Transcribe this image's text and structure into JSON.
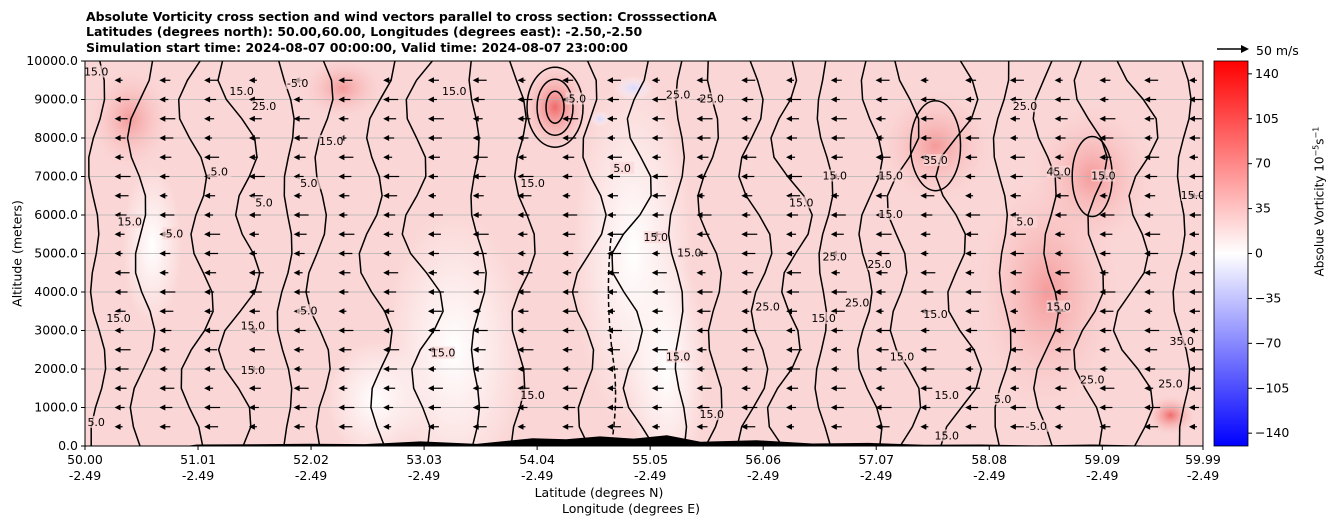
{
  "titles": {
    "line1": "Absolute Vorticity cross section and wind vectors parallel to cross section: CrosssectionA",
    "line2": "Latitudes (degrees north): 50.00,60.00, Longitudes (degrees east): -2.50,-2.50",
    "line3": "Simulation start time: 2024-08-07 00:00:00, Valid time: 2024-08-07 23:00:00"
  },
  "axes": {
    "ylabel": "Altitude (meters)",
    "xlabel_1": "Latitude (degrees N)",
    "xlabel_2": "Longitude (degrees E)"
  },
  "quiver_key": {
    "label": "50 m/s"
  },
  "colorbar": {
    "label": "Absolue Vorticity 10",
    "label_exp": "−5",
    "label_unit": "s",
    "label_unit_exp": "−1",
    "min": -150,
    "max": 150,
    "ticks": [
      "140",
      "105",
      "70",
      "35",
      "0",
      "−35",
      "−70",
      "−105",
      "−140"
    ],
    "colors": {
      "max": "#ff0000",
      "mid": "#ffffff",
      "min": "#0000ff"
    }
  },
  "chart_data": {
    "type": "heatmap",
    "title": "Absolute Vorticity cross section and wind vectors parallel to cross section: CrosssectionA",
    "xlabel": "Latitude (degrees N) / Longitude (degrees E)",
    "ylabel": "Altitude (meters)",
    "x_range": [
      50.0,
      59.99
    ],
    "y_range": [
      0,
      10000
    ],
    "grid": "horizontal",
    "x_ticks": [
      {
        "lat": "50.00",
        "lon": "-2.49"
      },
      {
        "lat": "51.01",
        "lon": "-2.49"
      },
      {
        "lat": "52.02",
        "lon": "-2.49"
      },
      {
        "lat": "53.03",
        "lon": "-2.49"
      },
      {
        "lat": "54.04",
        "lon": "-2.49"
      },
      {
        "lat": "55.05",
        "lon": "-2.49"
      },
      {
        "lat": "56.06",
        "lon": "-2.49"
      },
      {
        "lat": "57.07",
        "lon": "-2.49"
      },
      {
        "lat": "58.08",
        "lon": "-2.49"
      },
      {
        "lat": "59.09",
        "lon": "-2.49"
      },
      {
        "lat": "59.99",
        "lon": "-2.49"
      }
    ],
    "y_ticks": [
      "0.0",
      "1000.0",
      "2000.0",
      "3000.0",
      "4000.0",
      "5000.0",
      "6000.0",
      "7000.0",
      "8000.0",
      "9000.0",
      "10000.0"
    ],
    "contour_levels_labeled": [
      "-5.0",
      "5.0",
      "15.0",
      "25.0",
      "35.0",
      "45.0"
    ],
    "contour_labels": [
      {
        "text": "15.0",
        "x": 50.1,
        "y": 9700
      },
      {
        "text": "15.0",
        "x": 51.4,
        "y": 9200
      },
      {
        "text": "-5.0",
        "x": 51.9,
        "y": 9400
      },
      {
        "text": "25.0",
        "x": 51.6,
        "y": 8800
      },
      {
        "text": "15.0",
        "x": 53.3,
        "y": 9200
      },
      {
        "text": "5.0",
        "x": 54.4,
        "y": 9000
      },
      {
        "text": "25.0",
        "x": 55.3,
        "y": 9100
      },
      {
        "text": "25.0",
        "x": 55.6,
        "y": 9000
      },
      {
        "text": "25.0",
        "x": 58.4,
        "y": 8800
      },
      {
        "text": "15.0",
        "x": 52.2,
        "y": 7900
      },
      {
        "text": "5.0",
        "x": 51.2,
        "y": 7100
      },
      {
        "text": "5.0",
        "x": 51.6,
        "y": 6300
      },
      {
        "text": "5.0",
        "x": 50.8,
        "y": 5500
      },
      {
        "text": "15.0",
        "x": 50.4,
        "y": 5800
      },
      {
        "text": "5.0",
        "x": 52.0,
        "y": 6800
      },
      {
        "text": "15.0",
        "x": 54.0,
        "y": 6800
      },
      {
        "text": "5.0",
        "x": 54.8,
        "y": 7200
      },
      {
        "text": "15.0",
        "x": 55.1,
        "y": 5400
      },
      {
        "text": "15.0",
        "x": 55.4,
        "y": 5000
      },
      {
        "text": "15.0",
        "x": 56.4,
        "y": 6300
      },
      {
        "text": "15.0",
        "x": 56.7,
        "y": 7000
      },
      {
        "text": "15.0",
        "x": 57.2,
        "y": 7000
      },
      {
        "text": "35.0",
        "x": 57.6,
        "y": 7400
      },
      {
        "text": "15.0",
        "x": 57.2,
        "y": 6000
      },
      {
        "text": "25.0",
        "x": 56.7,
        "y": 4900
      },
      {
        "text": "25.0",
        "x": 57.1,
        "y": 4700
      },
      {
        "text": "5.0",
        "x": 58.4,
        "y": 5800
      },
      {
        "text": "45.0",
        "x": 58.7,
        "y": 7100
      },
      {
        "text": "15.0",
        "x": 59.1,
        "y": 7000
      },
      {
        "text": "15.0",
        "x": 59.9,
        "y": 6500
      },
      {
        "text": "15.0",
        "x": 50.3,
        "y": 3300
      },
      {
        "text": "15.0",
        "x": 51.5,
        "y": 3100
      },
      {
        "text": "5.0",
        "x": 52.0,
        "y": 3500
      },
      {
        "text": "15.0",
        "x": 51.5,
        "y": 1950
      },
      {
        "text": "25.0",
        "x": 56.1,
        "y": 3600
      },
      {
        "text": "15.0",
        "x": 56.6,
        "y": 3300
      },
      {
        "text": "25.0",
        "x": 56.9,
        "y": 3700
      },
      {
        "text": "15.0",
        "x": 57.6,
        "y": 3400
      },
      {
        "text": "15.0",
        "x": 58.7,
        "y": 3600
      },
      {
        "text": "15.0",
        "x": 55.3,
        "y": 2300
      },
      {
        "text": "15.0",
        "x": 53.2,
        "y": 2400
      },
      {
        "text": "15.0",
        "x": 57.3,
        "y": 2300
      },
      {
        "text": "15.0",
        "x": 57.7,
        "y": 1300
      },
      {
        "text": "25.0",
        "x": 59.0,
        "y": 1700
      },
      {
        "text": "35.0",
        "x": 59.8,
        "y": 2700
      },
      {
        "text": "25.0",
        "x": 59.7,
        "y": 1600
      },
      {
        "text": "15.0",
        "x": 54.0,
        "y": 1300
      },
      {
        "text": "5.0",
        "x": 58.2,
        "y": 1200
      },
      {
        "text": "-5.0",
        "x": 58.5,
        "y": 500
      },
      {
        "text": "15.0",
        "x": 57.7,
        "y": 250
      },
      {
        "text": "5.0",
        "x": 50.1,
        "y": 600
      },
      {
        "text": "15.0",
        "x": 55.6,
        "y": 800
      }
    ],
    "fill_notes": "Field mostly weakly positive (light pink, 5–35); stronger positive (~35–60) near 54.0–54.4 N at 8000–9500 m, 57.5 N and 59.0 N mid-levels; small negative patches near 55.0 N aloft and low levels.",
    "wind_vectors": {
      "direction": "toward decreasing latitude (southward, leftward)",
      "typical_speed_range_mps": [
        5,
        20
      ],
      "reference": "50 m/s"
    },
    "terrain_note": "Black filled terrain along the bottom from 51 N to 59.9 N with peaks up to ~350 m near 54.0–55.5 N"
  }
}
